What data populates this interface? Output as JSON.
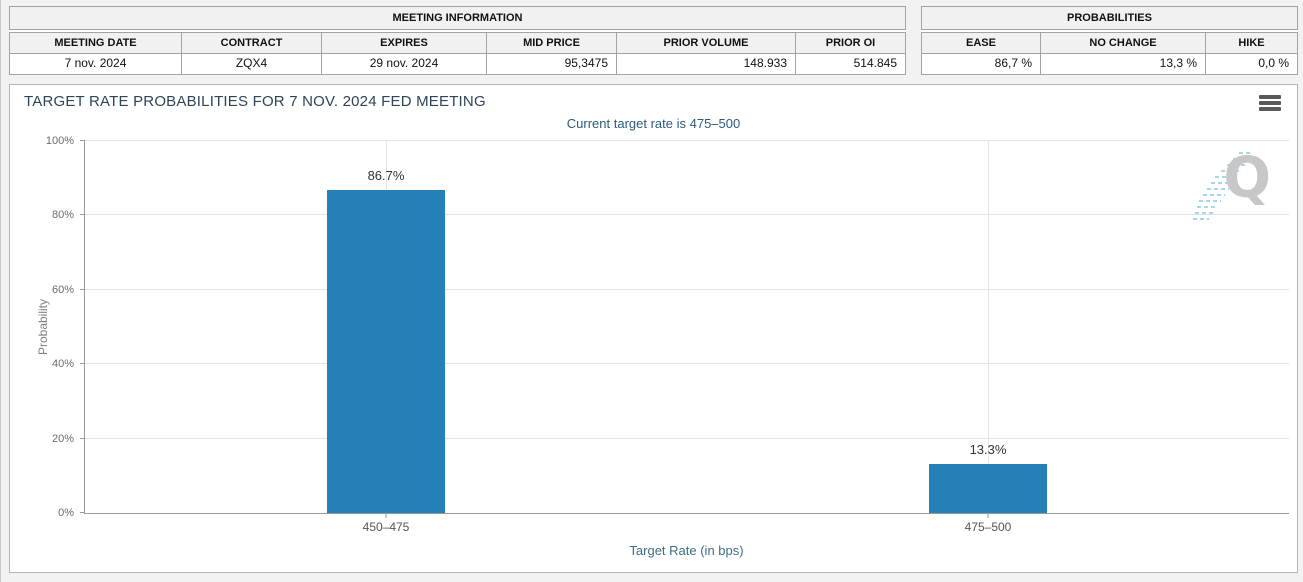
{
  "meeting_information": {
    "title": "MEETING INFORMATION",
    "columns": [
      "MEETING DATE",
      "CONTRACT",
      "EXPIRES",
      "MID PRICE",
      "PRIOR VOLUME",
      "PRIOR OI"
    ],
    "values": [
      "7 nov. 2024",
      "ZQX4",
      "29 nov. 2024",
      "95,3475",
      "148.933",
      "514.845"
    ]
  },
  "probabilities": {
    "title": "PROBABILITIES",
    "columns": [
      "EASE",
      "NO CHANGE",
      "HIKE"
    ],
    "values": [
      "86,7 %",
      "13,3 %",
      "0,0 %"
    ]
  },
  "chart": {
    "title": "TARGET RATE PROBABILITIES FOR 7 NOV. 2024 FED MEETING",
    "subtitle": "Current target rate is 475–500",
    "menu_icon": "hamburger-icon",
    "watermark_letter": "Q"
  },
  "chart_data": {
    "type": "bar",
    "categories": [
      "450–475",
      "475–500"
    ],
    "values": [
      86.7,
      13.3
    ],
    "bar_labels": [
      "86.7%",
      "13.3%"
    ],
    "title": "TARGET RATE PROBABILITIES FOR 7 NOV. 2024 FED MEETING",
    "subtitle": "Current target rate is 475–500",
    "xlabel": "Target Rate (in bps)",
    "ylabel": "Probability",
    "ylim": [
      0,
      100
    ],
    "yticks": [
      "0%",
      "20%",
      "40%",
      "60%",
      "80%",
      "100%"
    ],
    "grid": true,
    "legend": "none",
    "bar_color": "#2580b5"
  },
  "colors": {
    "bar": "#2580b5",
    "title_text": "#2e4459",
    "subtitle_text": "#2c5a7b",
    "watermark_streak": "#a5d8e8",
    "watermark_letter": "#c7c7c7"
  }
}
